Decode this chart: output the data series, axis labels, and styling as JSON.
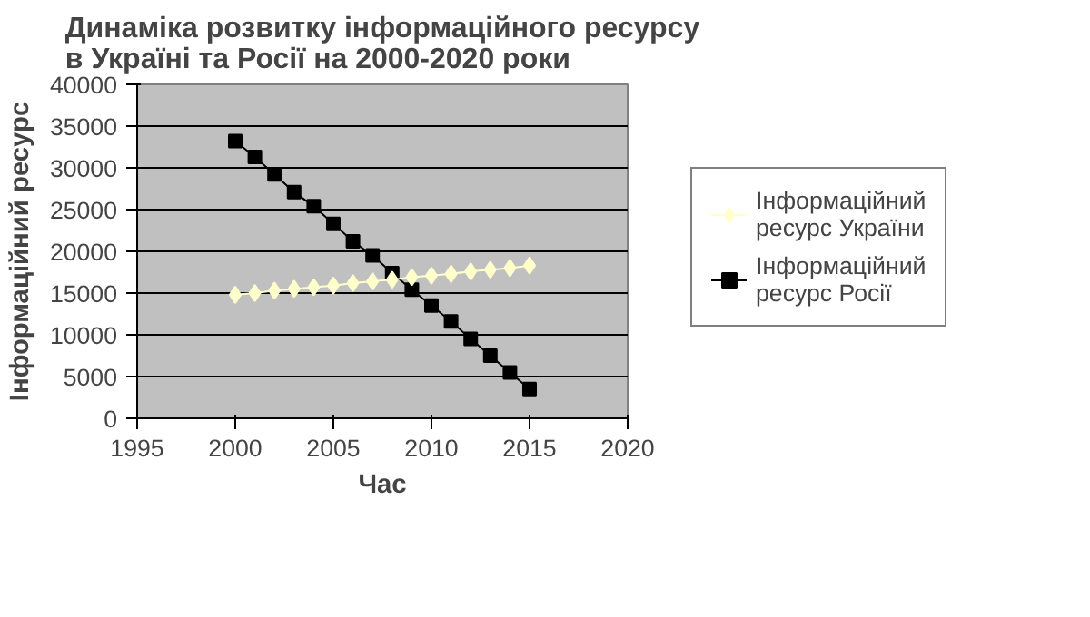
{
  "chart_data": {
    "type": "line",
    "title": "Динаміка розвитку інформаційного ресурсу в Україні та Росії на 2000-2020 роки",
    "xlabel": "Час",
    "ylabel": "Інформаційний ресурс",
    "x": [
      2000,
      2001,
      2002,
      2003,
      2004,
      2005,
      2006,
      2007,
      2008,
      2009,
      2010,
      2011,
      2012,
      2013,
      2014,
      2015
    ],
    "series": [
      {
        "name": "Інформаційний ресурс України",
        "color": "#ffffcc",
        "marker": "diamond",
        "values": [
          14800,
          15000,
          15300,
          15500,
          15700,
          15900,
          16200,
          16400,
          16600,
          16900,
          17100,
          17300,
          17600,
          17800,
          18000,
          18300
        ]
      },
      {
        "name": "Інформаційний ресурс Росії",
        "color": "#000000",
        "marker": "square",
        "values": [
          33200,
          31300,
          29200,
          27100,
          25400,
          23300,
          21200,
          19500,
          17400,
          15400,
          13500,
          11600,
          9500,
          7500,
          5500,
          3500
        ]
      }
    ],
    "xlim": [
      1995,
      2020
    ],
    "xticks": [
      1995,
      2000,
      2005,
      2010,
      2015,
      2020
    ],
    "ylim": [
      0,
      40000
    ],
    "yticks": [
      0,
      5000,
      10000,
      15000,
      20000,
      25000,
      30000,
      35000,
      40000
    ],
    "grid": "y",
    "legend": "right",
    "line_style": "solid"
  }
}
